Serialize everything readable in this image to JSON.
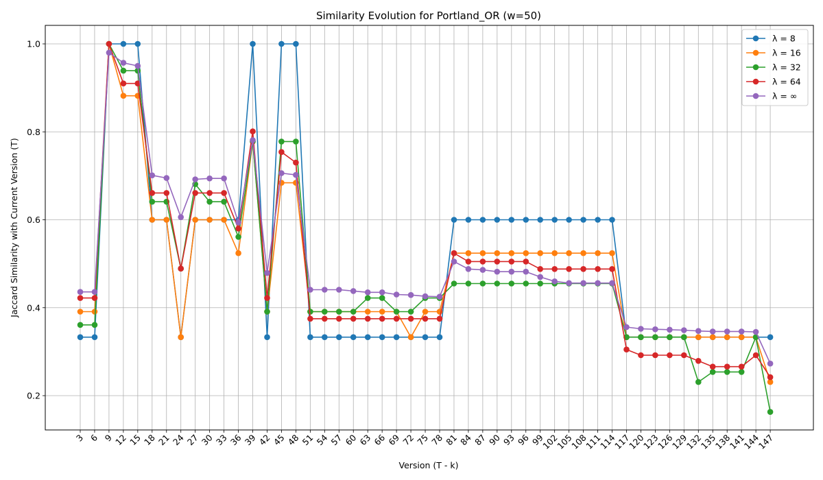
{
  "chart_data": {
    "type": "line",
    "title": "Similarity Evolution for Portland_OR (w=50)",
    "xlabel": "Version (T - k)",
    "ylabel": "Jaccard Similarity with Current Version (T)",
    "x": [
      3,
      6,
      9,
      12,
      15,
      18,
      21,
      24,
      27,
      30,
      33,
      36,
      39,
      42,
      45,
      48,
      51,
      54,
      57,
      60,
      63,
      66,
      69,
      72,
      75,
      78,
      81,
      84,
      87,
      90,
      93,
      96,
      99,
      102,
      105,
      108,
      111,
      114,
      117,
      120,
      123,
      126,
      129,
      132,
      135,
      138,
      141,
      144,
      147
    ],
    "ylim": [
      0.12,
      1.04
    ],
    "yticks": [
      "0.2",
      "0.4",
      "0.6",
      "0.8",
      "1.0"
    ],
    "grid": true,
    "legend_position": "upper-right",
    "series": [
      {
        "name": "λ = 8",
        "color": "#1f77b4",
        "values": [
          0.333,
          0.333,
          1.0,
          1.0,
          1.0,
          0.6,
          0.6,
          0.333,
          0.6,
          0.6,
          0.6,
          0.6,
          1.0,
          0.333,
          1.0,
          1.0,
          0.333,
          0.333,
          0.333,
          0.333,
          0.333,
          0.333,
          0.333,
          0.333,
          0.333,
          0.333,
          0.6,
          0.6,
          0.6,
          0.6,
          0.6,
          0.6,
          0.6,
          0.6,
          0.6,
          0.6,
          0.6,
          0.6,
          0.333,
          0.333,
          0.333,
          0.333,
          0.333,
          0.333,
          0.333,
          0.333,
          0.333,
          0.333,
          0.333
        ]
      },
      {
        "name": "λ = 16",
        "color": "#ff7f0e",
        "values": [
          0.391,
          0.391,
          1.0,
          0.882,
          0.882,
          0.6,
          0.6,
          0.333,
          0.6,
          0.6,
          0.6,
          0.524,
          0.778,
          0.391,
          0.684,
          0.684,
          0.391,
          0.391,
          0.391,
          0.391,
          0.391,
          0.391,
          0.391,
          0.333,
          0.391,
          0.391,
          0.524,
          0.524,
          0.524,
          0.524,
          0.524,
          0.524,
          0.524,
          0.524,
          0.524,
          0.524,
          0.524,
          0.524,
          0.333,
          0.333,
          0.333,
          0.333,
          0.333,
          0.333,
          0.333,
          0.333,
          0.333,
          0.333,
          0.231
        ]
      },
      {
        "name": "λ = 32",
        "color": "#2ca02c",
        "values": [
          0.361,
          0.361,
          1.0,
          0.939,
          0.939,
          0.641,
          0.641,
          0.489,
          0.681,
          0.641,
          0.641,
          0.561,
          0.778,
          0.391,
          0.778,
          0.778,
          0.391,
          0.391,
          0.391,
          0.391,
          0.422,
          0.422,
          0.391,
          0.391,
          0.422,
          0.422,
          0.455,
          0.455,
          0.455,
          0.455,
          0.455,
          0.455,
          0.455,
          0.455,
          0.455,
          0.455,
          0.455,
          0.455,
          0.333,
          0.333,
          0.333,
          0.333,
          0.333,
          0.231,
          0.254,
          0.254,
          0.254,
          0.333,
          0.163
        ]
      },
      {
        "name": "λ = 64",
        "color": "#d62728",
        "values": [
          0.422,
          0.422,
          1.0,
          0.91,
          0.91,
          0.661,
          0.661,
          0.489,
          0.661,
          0.661,
          0.661,
          0.58,
          0.801,
          0.422,
          0.754,
          0.73,
          0.375,
          0.375,
          0.375,
          0.375,
          0.375,
          0.375,
          0.375,
          0.375,
          0.375,
          0.375,
          0.524,
          0.505,
          0.505,
          0.505,
          0.505,
          0.505,
          0.488,
          0.488,
          0.488,
          0.488,
          0.488,
          0.488,
          0.305,
          0.292,
          0.292,
          0.292,
          0.292,
          0.279,
          0.266,
          0.266,
          0.266,
          0.292,
          0.242
        ]
      },
      {
        "name": "λ = ∞",
        "color": "#9467bd",
        "values": [
          0.436,
          0.436,
          0.98,
          0.957,
          0.95,
          0.701,
          0.695,
          0.606,
          0.692,
          0.694,
          0.694,
          0.594,
          0.781,
          0.479,
          0.706,
          0.702,
          0.441,
          0.441,
          0.441,
          0.438,
          0.435,
          0.435,
          0.43,
          0.429,
          0.426,
          0.425,
          0.505,
          0.488,
          0.486,
          0.482,
          0.482,
          0.482,
          0.47,
          0.46,
          0.456,
          0.456,
          0.456,
          0.456,
          0.356,
          0.352,
          0.351,
          0.35,
          0.349,
          0.347,
          0.346,
          0.346,
          0.346,
          0.345,
          0.273
        ]
      }
    ]
  }
}
